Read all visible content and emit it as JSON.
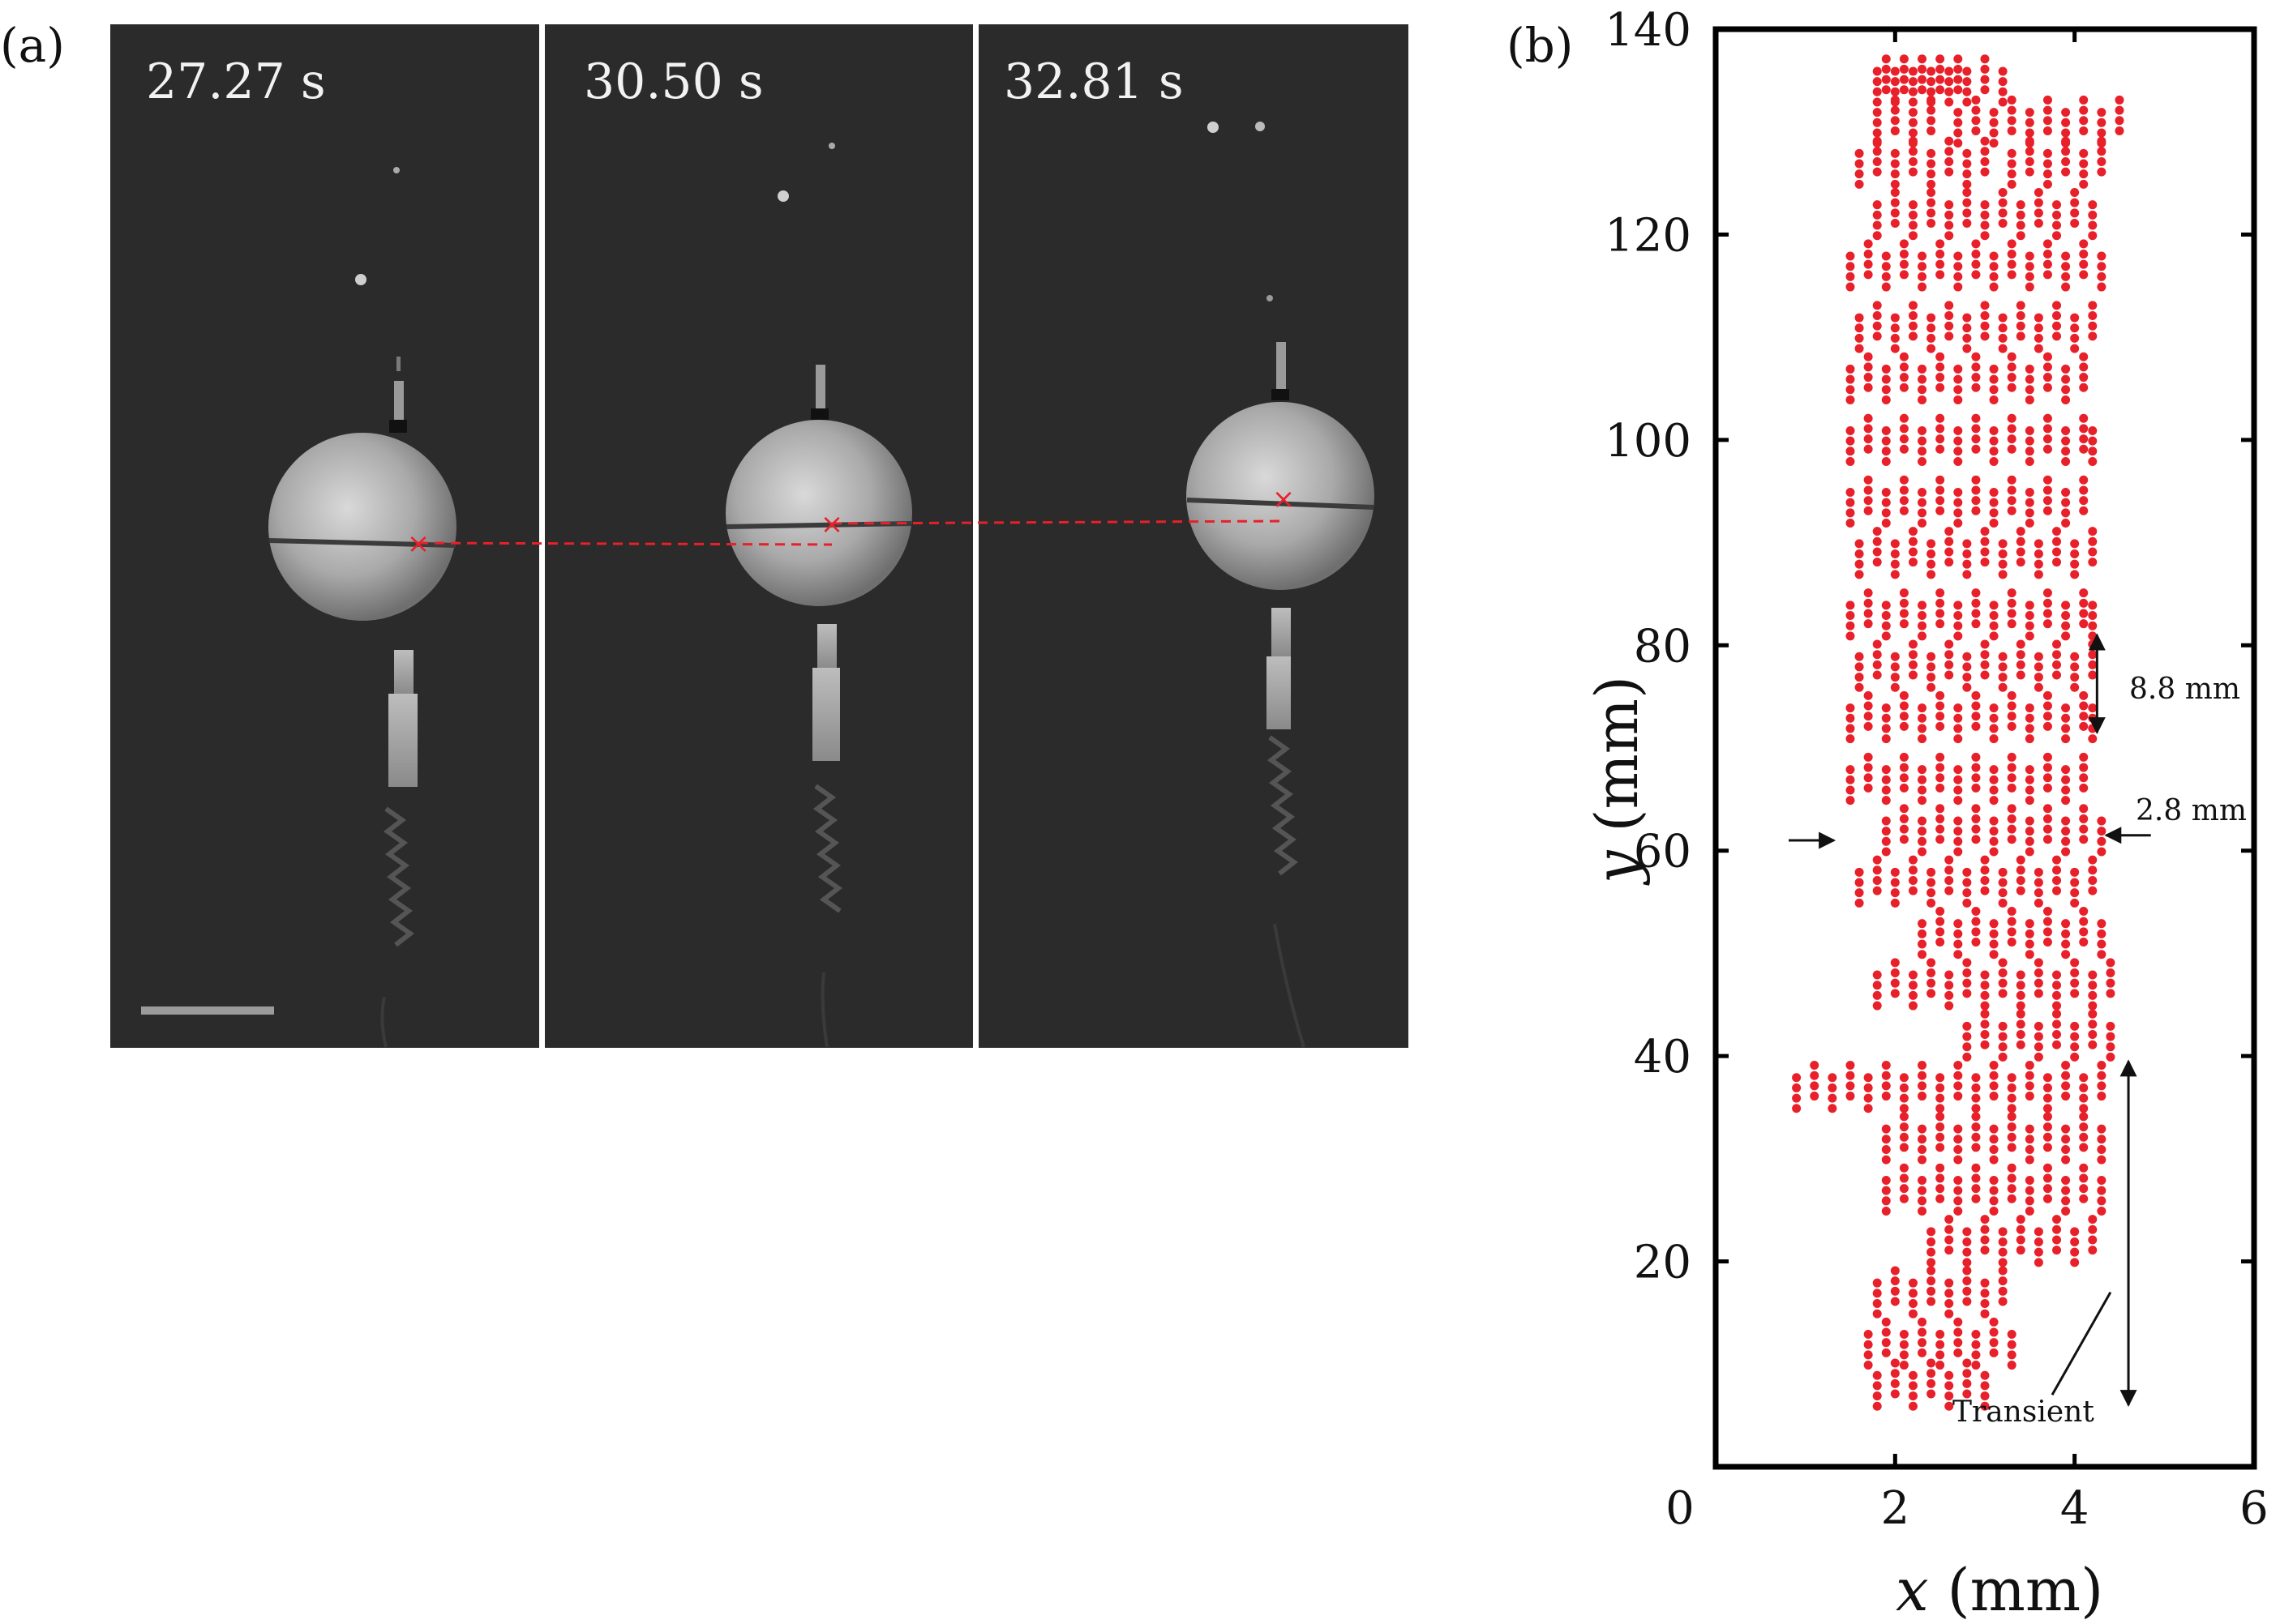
{
  "panel_a": {
    "label": "(a)",
    "frames": [
      {
        "time": "27.27 s"
      },
      {
        "time": "30.50 s"
      },
      {
        "time": "32.81 s"
      }
    ]
  },
  "panel_b": {
    "label": "(b)",
    "annotations": {
      "period": "8.8 mm",
      "amplitude": "2.8 mm",
      "transient": "Transient"
    }
  },
  "colors": {
    "marker": "#e8202a",
    "photo_bg": "#2b2b2b"
  },
  "chart_data": {
    "type": "scatter",
    "title": "",
    "xlabel": "x (mm)",
    "ylabel": "y (mm)",
    "xlim": [
      0,
      6
    ],
    "ylim": [
      0,
      140
    ],
    "xticks": [
      0,
      2,
      4,
      6
    ],
    "yticks": [
      20,
      40,
      60,
      80,
      100,
      120,
      140
    ],
    "grid": false,
    "series": [
      {
        "color": "#e8202a",
        "description_rows": [
          {
            "y": 135,
            "x": [
              1.8,
              1.9,
              2.0,
              2.1,
              2.2,
              2.3,
              2.4,
              2.5,
              2.6,
              2.7,
              2.8,
              3.0,
              3.2
            ]
          },
          {
            "y": 131,
            "x": [
              1.8,
              2.0,
              2.2,
              2.4,
              2.7,
              2.9,
              3.1,
              3.3,
              3.5,
              3.7,
              3.9,
              4.1,
              4.3,
              4.5
            ]
          },
          {
            "y": 127,
            "x": [
              1.6,
              1.8,
              2.0,
              2.2,
              2.4,
              2.6,
              2.8,
              3.0,
              3.3,
              3.5,
              3.7,
              3.9,
              4.1,
              4.3
            ]
          },
          {
            "y": 122,
            "x": [
              1.8,
              2.0,
              2.2,
              2.4,
              2.6,
              2.8,
              3.0,
              3.2,
              3.4,
              3.6,
              3.8,
              4.0,
              4.2
            ]
          },
          {
            "y": 117,
            "x": [
              1.5,
              1.7,
              1.9,
              2.1,
              2.3,
              2.5,
              2.7,
              2.9,
              3.1,
              3.3,
              3.5,
              3.7,
              3.9,
              4.1,
              4.3
            ]
          },
          {
            "y": 111,
            "x": [
              1.6,
              1.8,
              2.0,
              2.2,
              2.4,
              2.6,
              2.8,
              3.0,
              3.2,
              3.4,
              3.6,
              3.8,
              4.0,
              4.2
            ]
          },
          {
            "y": 106,
            "x": [
              1.5,
              1.7,
              1.9,
              2.1,
              2.3,
              2.5,
              2.7,
              2.9,
              3.1,
              3.3,
              3.5,
              3.7,
              3.9,
              4.1
            ]
          },
          {
            "y": 100,
            "x": [
              1.5,
              1.7,
              1.9,
              2.1,
              2.3,
              2.5,
              2.7,
              2.9,
              3.1,
              3.3,
              3.5,
              3.7,
              3.9,
              4.1,
              4.2
            ]
          },
          {
            "y": 94,
            "x": [
              1.5,
              1.7,
              1.9,
              2.1,
              2.3,
              2.5,
              2.7,
              2.9,
              3.1,
              3.3,
              3.5,
              3.7,
              3.9,
              4.1
            ]
          },
          {
            "y": 89,
            "x": [
              1.6,
              1.8,
              2.0,
              2.2,
              2.4,
              2.6,
              2.8,
              3.0,
              3.2,
              3.4,
              3.6,
              3.8,
              4.0,
              4.2
            ]
          },
          {
            "y": 83,
            "x": [
              1.5,
              1.7,
              1.9,
              2.1,
              2.3,
              2.5,
              2.7,
              2.9,
              3.1,
              3.3,
              3.5,
              3.7,
              3.9,
              4.1,
              4.2
            ]
          },
          {
            "y": 78,
            "x": [
              1.6,
              1.8,
              2.0,
              2.2,
              2.4,
              2.6,
              2.8,
              3.0,
              3.2,
              3.4,
              3.6,
              3.8,
              4.0,
              4.2
            ]
          },
          {
            "y": 73,
            "x": [
              1.5,
              1.7,
              1.9,
              2.1,
              2.3,
              2.5,
              2.7,
              2.9,
              3.1,
              3.3,
              3.5,
              3.7,
              3.9,
              4.1,
              4.2
            ]
          },
          {
            "y": 67,
            "x": [
              1.5,
              1.7,
              1.9,
              2.1,
              2.3,
              2.5,
              2.7,
              2.9,
              3.1,
              3.3,
              3.5,
              3.7,
              3.9,
              4.1
            ]
          },
          {
            "y": 62,
            "x": [
              1.9,
              2.1,
              2.3,
              2.5,
              2.7,
              2.9,
              3.1,
              3.3,
              3.5,
              3.7,
              3.9,
              4.1,
              4.3
            ]
          },
          {
            "y": 57,
            "x": [
              1.6,
              1.8,
              2.0,
              2.2,
              2.4,
              2.6,
              2.8,
              3.0,
              3.2,
              3.4,
              3.6,
              3.8,
              4.0,
              4.2
            ]
          },
          {
            "y": 52,
            "x": [
              2.3,
              2.5,
              2.7,
              2.9,
              3.1,
              3.3,
              3.5,
              3.7,
              3.9,
              4.1,
              4.3
            ]
          },
          {
            "y": 47,
            "x": [
              1.8,
              2.0,
              2.2,
              2.4,
              2.6,
              2.8,
              3.0,
              3.2,
              3.4,
              3.6,
              3.8,
              4.0,
              4.2,
              4.4
            ]
          },
          {
            "y": 42,
            "x": [
              2.8,
              3.0,
              3.2,
              3.4,
              3.6,
              3.8,
              4.0,
              4.2,
              4.4
            ]
          },
          {
            "y": 37,
            "x": [
              0.9,
              1.1,
              1.3,
              1.5,
              1.7,
              1.9,
              2.1,
              2.3,
              2.5,
              2.7,
              2.9,
              3.1,
              3.3,
              3.5,
              3.7,
              3.9,
              4.1,
              4.3
            ]
          },
          {
            "y": 32,
            "x": [
              1.9,
              2.1,
              2.3,
              2.5,
              2.7,
              2.9,
              3.1,
              3.3,
              3.5,
              3.7,
              3.9,
              4.1,
              4.3
            ]
          },
          {
            "y": 27,
            "x": [
              1.9,
              2.1,
              2.3,
              2.5,
              2.7,
              2.9,
              3.1,
              3.3,
              3.5,
              3.7,
              3.9,
              4.1,
              4.3
            ]
          },
          {
            "y": 22,
            "x": [
              2.4,
              2.6,
              2.8,
              3.0,
              3.2,
              3.4,
              3.6,
              3.8,
              4.0,
              4.2
            ]
          },
          {
            "y": 17,
            "x": [
              1.8,
              2.0,
              2.2,
              2.4,
              2.6,
              2.8,
              3.0,
              3.2
            ]
          },
          {
            "y": 12,
            "x": [
              1.7,
              1.9,
              2.1,
              2.3,
              2.5,
              2.7,
              2.9,
              3.1,
              3.3
            ]
          },
          {
            "y": 8,
            "x": [
              1.8,
              2.0,
              2.2,
              2.4,
              2.6,
              2.8,
              3.0
            ]
          }
        ]
      }
    ]
  }
}
